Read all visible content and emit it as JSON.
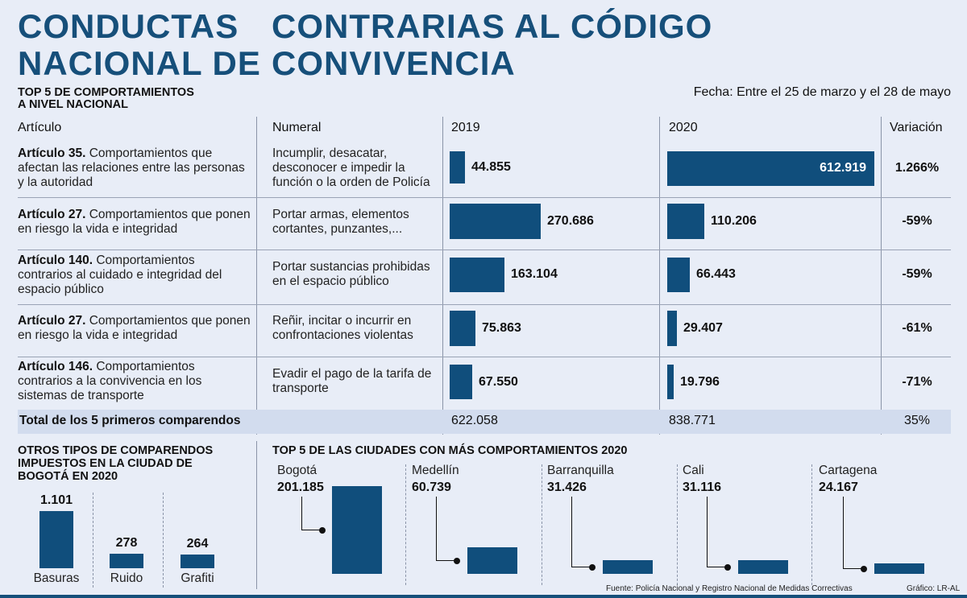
{
  "title": {
    "part1_line1": "CONDUCTAS",
    "part1_line2": "NACIONAL DE",
    "part2_line1": "CONTRARIAS AL CÓDIGO",
    "part2_line2": "CONVIVENCIA"
  },
  "section1": {
    "title_line1": "TOP 5 DE COMPORTAMIENTOS",
    "title_line2": "A NIVEL NACIONAL",
    "date": "Fecha: Entre el 25 de marzo y el 28 de mayo",
    "headers": {
      "articulo": "Artículo",
      "numeral": "Numeral",
      "y2019": "2019",
      "y2020": "2020",
      "variacion": "Variación"
    }
  },
  "rows": [
    {
      "article": "Artículo 35.",
      "article_desc": "Comportamientos que afectan las relaciones entre las personas y la autoridad",
      "numeral": "Incumplir, desacatar, desconocer e impedir la función o la orden de Policía",
      "v2019_label": "44.855",
      "v2020_label": "612.919",
      "variation": "1.266%"
    },
    {
      "article": "Artículo 27.",
      "article_desc": "Comportamientos que ponen en riesgo la vida e integridad",
      "numeral": "Portar armas, elementos cortantes, punzantes,...",
      "v2019_label": "270.686",
      "v2020_label": "110.206",
      "variation": "-59%"
    },
    {
      "article": "Artículo 140.",
      "article_desc": "Comportamientos contrarios al cuidado e integridad del espacio público",
      "numeral": "Portar sustancias prohibidas en el espacio público",
      "v2019_label": "163.104",
      "v2020_label": "66.443",
      "variation": "-59%"
    },
    {
      "article": "Artículo 27.",
      "article_desc": "Comportamientos que ponen en riesgo la vida e integridad",
      "numeral": "Reñir, incitar o incurrir en confrontaciones violentas",
      "v2019_label": "75.863",
      "v2020_label": "29.407",
      "variation": "-61%"
    },
    {
      "article": "Artículo 146.",
      "article_desc": "Comportamientos contrarios a la convivencia en los sistemas de transporte",
      "numeral": "Evadir el pago de la tarifa de transporte",
      "v2019_label": "67.550",
      "v2020_label": "19.796",
      "variation": "-71%"
    }
  ],
  "total": {
    "label": "Total de los 5 primeros comparendos",
    "v2019": "622.058",
    "v2020": "838.771",
    "variation": "35%"
  },
  "bogota": {
    "title_line1": "OTROS TIPOS DE COMPARENDOS",
    "title_line2": "IMPUESTOS EN LA CIUDAD DE",
    "title_line3": "BOGOTÁ  EN 2020"
  },
  "cities": {
    "title": "TOP 5 DE LAS CIUDADES CON MÁS COMPORTAMIENTOS 2020"
  },
  "footer": {
    "source": "Fuente: Policía Nacional y Registro Nacional de Medidas Correctivas",
    "credit": "Gráfico: LR-AL"
  },
  "colors": {
    "bar": "#104e7c",
    "title": "#164f7a",
    "background": "#e8edf7"
  },
  "chart_data": [
    {
      "type": "bar",
      "title": "TOP 5 DE COMPORTAMIENTOS A NIVEL NACIONAL",
      "categories": [
        "Artículo 35.",
        "Artículo 27.",
        "Artículo 140.",
        "Artículo 27.",
        "Artículo 146."
      ],
      "series": [
        {
          "name": "2019",
          "values": [
            44855,
            270686,
            163104,
            75863,
            67550
          ]
        },
        {
          "name": "2020",
          "values": [
            612919,
            110206,
            66443,
            29407,
            19796
          ]
        }
      ],
      "xlim": [
        0,
        612919
      ]
    },
    {
      "type": "bar",
      "title": "OTROS TIPOS DE COMPARENDOS IMPUESTOS EN LA CIUDAD DE BOGOTÁ EN 2020",
      "categories": [
        "Basuras",
        "Ruido",
        "Grafiti"
      ],
      "values": [
        1101,
        278,
        264
      ],
      "value_labels": [
        "1.101",
        "278",
        "264"
      ]
    },
    {
      "type": "bar",
      "title": "TOP 5 DE LAS CIUDADES CON MÁS COMPORTAMIENTOS 2020",
      "categories": [
        "Bogotá",
        "Medellín",
        "Barranquilla",
        "Cali",
        "Cartagena"
      ],
      "values": [
        201185,
        60739,
        31426,
        31116,
        24167
      ],
      "value_labels": [
        "201.185",
        "60.739",
        "31.426",
        "31.116",
        "24.167"
      ]
    }
  ]
}
